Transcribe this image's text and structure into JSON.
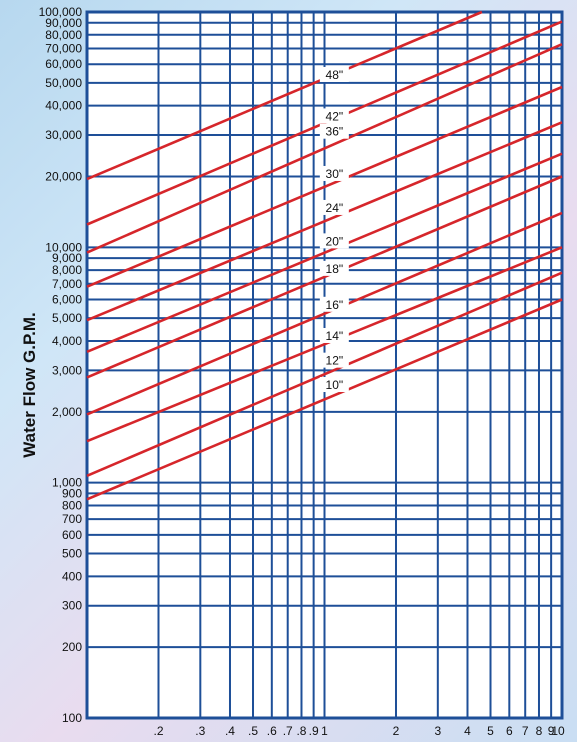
{
  "chart_data": {
    "type": "line",
    "title": "",
    "ylabel": "Water Flow G.P.M.",
    "xlabel": "",
    "x_scale": "log",
    "y_scale": "log",
    "xlim": [
      0.1,
      10
    ],
    "ylim": [
      100,
      100000
    ],
    "grid": true,
    "colors": {
      "line": "#d6262b",
      "grid": "#1e4f98",
      "background": "#ffffff"
    },
    "y_ticks": [
      {
        "v": 100,
        "label": "100"
      },
      {
        "v": 200,
        "label": "200"
      },
      {
        "v": 300,
        "label": "300"
      },
      {
        "v": 400,
        "label": "400"
      },
      {
        "v": 500,
        "label": "500"
      },
      {
        "v": 600,
        "label": "600"
      },
      {
        "v": 700,
        "label": "700"
      },
      {
        "v": 800,
        "label": "800"
      },
      {
        "v": 900,
        "label": "900"
      },
      {
        "v": 1000,
        "label": "1,000"
      },
      {
        "v": 2000,
        "label": "2,000"
      },
      {
        "v": 3000,
        "label": "3,000"
      },
      {
        "v": 4000,
        "label": "4,000"
      },
      {
        "v": 5000,
        "label": "5,000"
      },
      {
        "v": 6000,
        "label": "6,000"
      },
      {
        "v": 7000,
        "label": "7,000"
      },
      {
        "v": 8000,
        "label": "8,000"
      },
      {
        "v": 9000,
        "label": "9,000"
      },
      {
        "v": 10000,
        "label": "10,000"
      },
      {
        "v": 20000,
        "label": "20,000"
      },
      {
        "v": 30000,
        "label": "30,000"
      },
      {
        "v": 40000,
        "label": "40,000"
      },
      {
        "v": 50000,
        "label": "50,000"
      },
      {
        "v": 60000,
        "label": "60,000"
      },
      {
        "v": 70000,
        "label": "70,000"
      },
      {
        "v": 80000,
        "label": "80,000"
      },
      {
        "v": 90000,
        "label": "90,000"
      },
      {
        "v": 100000,
        "label": "100,000"
      }
    ],
    "x_ticks": [
      {
        "v": 0.2,
        "label": ".2"
      },
      {
        "v": 0.3,
        "label": ".3"
      },
      {
        "v": 0.4,
        "label": ".4"
      },
      {
        "v": 0.5,
        "label": ".5"
      },
      {
        "v": 0.6,
        "label": ".6"
      },
      {
        "v": 0.7,
        "label": ".7"
      },
      {
        "v": 0.8,
        "label": ".8"
      },
      {
        "v": 0.9,
        "label": ".9"
      },
      {
        "v": 1,
        "label": "1"
      },
      {
        "v": 2,
        "label": "2"
      },
      {
        "v": 3,
        "label": "3"
      },
      {
        "v": 4,
        "label": "4"
      },
      {
        "v": 5,
        "label": "5"
      },
      {
        "v": 6,
        "label": "6"
      },
      {
        "v": 7,
        "label": "7"
      },
      {
        "v": 8,
        "label": "8"
      },
      {
        "v": 9,
        "label": "9"
      },
      {
        "v": 10,
        "label": "10"
      }
    ],
    "series": [
      {
        "name": "48\"",
        "x": [
          0.1,
          4.6
        ],
        "y": [
          19500,
          100000
        ],
        "label_at": [
          1.1,
          54000
        ]
      },
      {
        "name": "42\"",
        "x": [
          0.1,
          10
        ],
        "y": [
          12500,
          91000
        ],
        "label_at": [
          1.1,
          36000
        ]
      },
      {
        "name": "36\"",
        "x": [
          0.1,
          10
        ],
        "y": [
          9500,
          73000
        ],
        "label_at": [
          1.1,
          31000
        ]
      },
      {
        "name": "30\"",
        "x": [
          0.1,
          10
        ],
        "y": [
          6800,
          48000
        ],
        "label_at": [
          1.1,
          20500
        ]
      },
      {
        "name": "24\"",
        "x": [
          0.1,
          10
        ],
        "y": [
          4900,
          34000
        ],
        "label_at": [
          1.1,
          14700
        ]
      },
      {
        "name": "20\"",
        "x": [
          0.1,
          10
        ],
        "y": [
          3600,
          25000
        ],
        "label_at": [
          1.1,
          10600
        ]
      },
      {
        "name": "18\"",
        "x": [
          0.1,
          10
        ],
        "y": [
          2800,
          20000
        ],
        "label_at": [
          1.1,
          8100
        ]
      },
      {
        "name": "16\"",
        "x": [
          0.1,
          10
        ],
        "y": [
          1950,
          14000
        ],
        "label_at": [
          1.1,
          5700
        ]
      },
      {
        "name": "14\"",
        "x": [
          0.1,
          10
        ],
        "y": [
          1500,
          10000
        ],
        "label_at": [
          1.1,
          4200
        ]
      },
      {
        "name": "12\"",
        "x": [
          0.1,
          10
        ],
        "y": [
          1070,
          7800
        ],
        "label_at": [
          1.1,
          3300
        ]
      },
      {
        "name": "10\"",
        "x": [
          0.1,
          10
        ],
        "y": [
          850,
          6000
        ],
        "label_at": [
          1.1,
          2600
        ]
      }
    ]
  }
}
